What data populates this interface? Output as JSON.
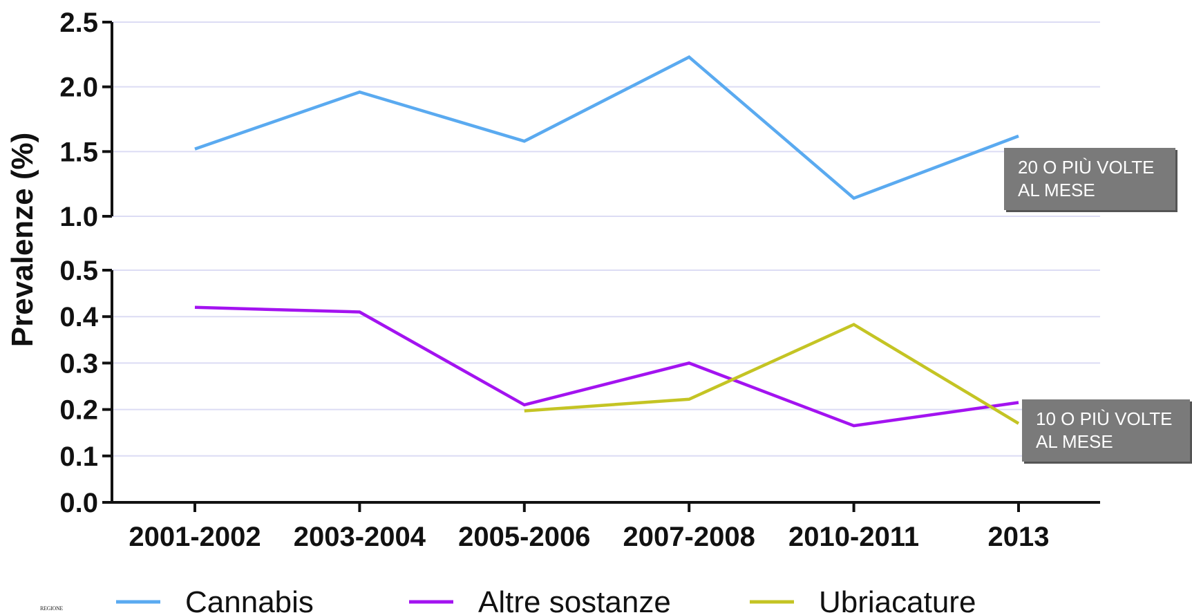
{
  "chart_data": {
    "type": "line",
    "ylabel": "Prevalenze (%)",
    "categories": [
      "2001-2002",
      "2003-2004",
      "2005-2006",
      "2007-2008",
      "2010-2011",
      "2013"
    ],
    "upper_panel": {
      "ylim": [
        1.0,
        2.5
      ],
      "yticks": [
        "1.0",
        "1.5",
        "2.0",
        "2.5"
      ],
      "series": [
        {
          "name": "Cannabis",
          "color": "#5aaaf0",
          "values": [
            1.52,
            1.96,
            1.58,
            2.23,
            1.14,
            1.62
          ]
        }
      ],
      "annotation": [
        "20 O PIÙ VOLTE",
        "AL MESE"
      ]
    },
    "lower_panel": {
      "ylim": [
        0.0,
        0.5
      ],
      "yticks": [
        "0.0",
        "0.1",
        "0.2",
        "0.3",
        "0.4",
        "0.5"
      ],
      "series": [
        {
          "name": "Altre sostanze",
          "color": "#a313f0",
          "values": [
            0.42,
            0.41,
            0.21,
            0.3,
            0.165,
            0.215
          ]
        },
        {
          "name": "Ubriacature",
          "color": "#c4c424",
          "values": [
            null,
            null,
            0.197,
            0.222,
            0.383,
            0.17
          ]
        }
      ],
      "annotation": [
        "10 O PIÙ VOLTE",
        "AL MESE"
      ]
    },
    "grid": true,
    "legend": "bottom",
    "footer_text": "REGIONE"
  }
}
